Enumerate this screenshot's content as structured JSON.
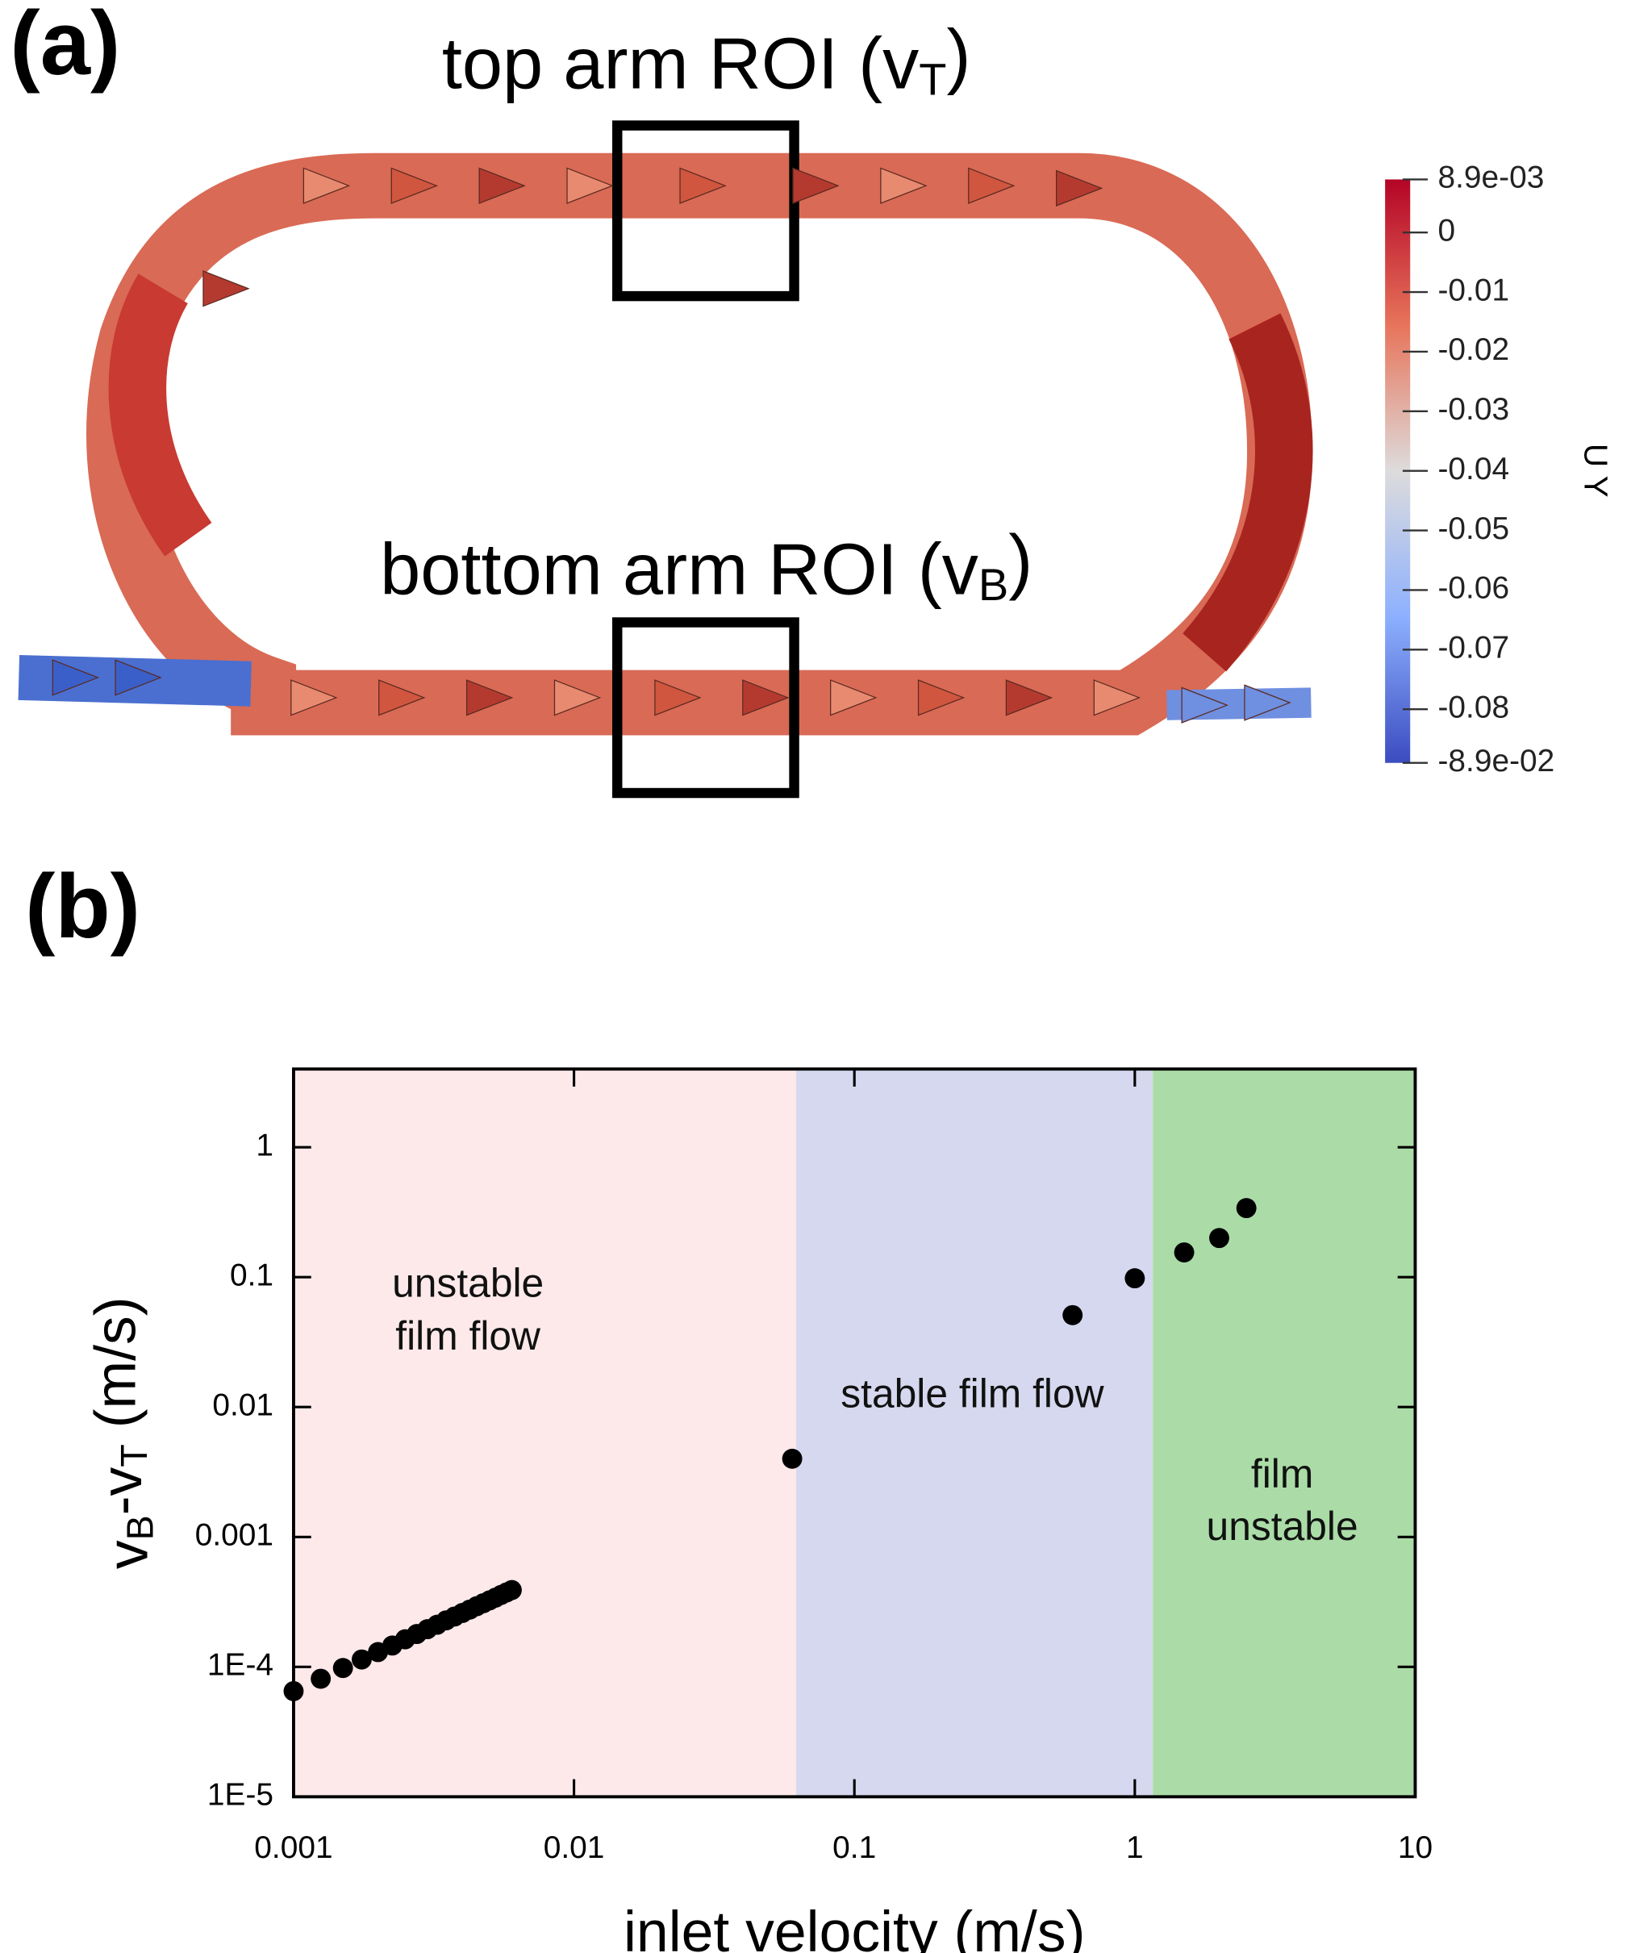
{
  "panel_a": {
    "label": "(a)",
    "top_annotation": [
      {
        "text": "top arm ROI (v"
      },
      {
        "text": "T",
        "subscript": true
      },
      {
        "text": ")"
      }
    ],
    "bottom_annotation": [
      {
        "text": "bottom arm ROI (v"
      },
      {
        "text": "B",
        "subscript": true
      },
      {
        "text": ")"
      }
    ],
    "colorbar": {
      "label": "U Y",
      "lim": [
        -0.089,
        0.0089
      ],
      "ticks": [
        {
          "value": 0.0089,
          "label": "8.9e-03"
        },
        0,
        -0.01,
        -0.02,
        -0.03,
        -0.04,
        -0.05,
        -0.06,
        -0.07,
        -0.08,
        {
          "value": -0.089,
          "label": "-8.9e-02"
        }
      ]
    }
  },
  "panel_b_label": "(b)",
  "chart_data": {
    "type": "scatter",
    "x_label": "inlet velocity (m/s)",
    "y_label": [
      {
        "text": "v"
      },
      {
        "text": "B",
        "subscript": true
      },
      {
        "text": "-v"
      },
      {
        "text": "T",
        "subscript": true
      },
      {
        "text": " (m/s)"
      }
    ],
    "log_x": true,
    "log_y": true,
    "xlim": [
      0.001,
      10
    ],
    "ylim": [
      1e-05,
      4
    ],
    "xticks": [
      0.001,
      0.01,
      0.1,
      1,
      10
    ],
    "yticks": [
      {
        "value": 1e-05,
        "label": "1E-5"
      },
      {
        "value": 0.0001,
        "label": "1E-4"
      },
      0.001,
      0.01,
      0.1,
      1
    ],
    "regions": [
      {
        "xlim": [
          0.001,
          0.062
        ],
        "color": "#fde9ea",
        "label_lines": [
          "unstable",
          "film flow"
        ]
      },
      {
        "xlim": [
          0.062,
          1.16
        ],
        "color": "#d5d8ee",
        "label_lines": [
          "stable film flow"
        ]
      },
      {
        "xlim": [
          1.16,
          10
        ],
        "color": "#abdca7",
        "label_lines": [
          "film",
          "unstable"
        ]
      }
    ],
    "series": [
      {
        "color": "#000000",
        "x": [
          0.001,
          0.00125,
          0.0015,
          0.00175,
          0.002,
          0.00225,
          0.0025,
          0.00275,
          0.003,
          0.00325,
          0.0035,
          0.00375,
          0.004,
          0.00425,
          0.0045,
          0.00475,
          0.005,
          0.00525,
          0.0055,
          0.00575,
          0.006,
          0.06,
          0.6,
          1,
          1.5,
          2,
          2.5
        ],
        "values": [
          6.5e-05,
          8.1e-05,
          9.8e-05,
          0.000114,
          0.00013,
          0.000146,
          0.000163,
          0.000179,
          0.000195,
          0.000211,
          0.000228,
          0.000244,
          0.00026,
          0.000276,
          0.000293,
          0.000309,
          0.000325,
          0.000341,
          0.000358,
          0.000374,
          0.00039,
          0.004,
          0.051,
          0.098,
          0.155,
          0.2,
          0.34
        ]
      }
    ]
  }
}
